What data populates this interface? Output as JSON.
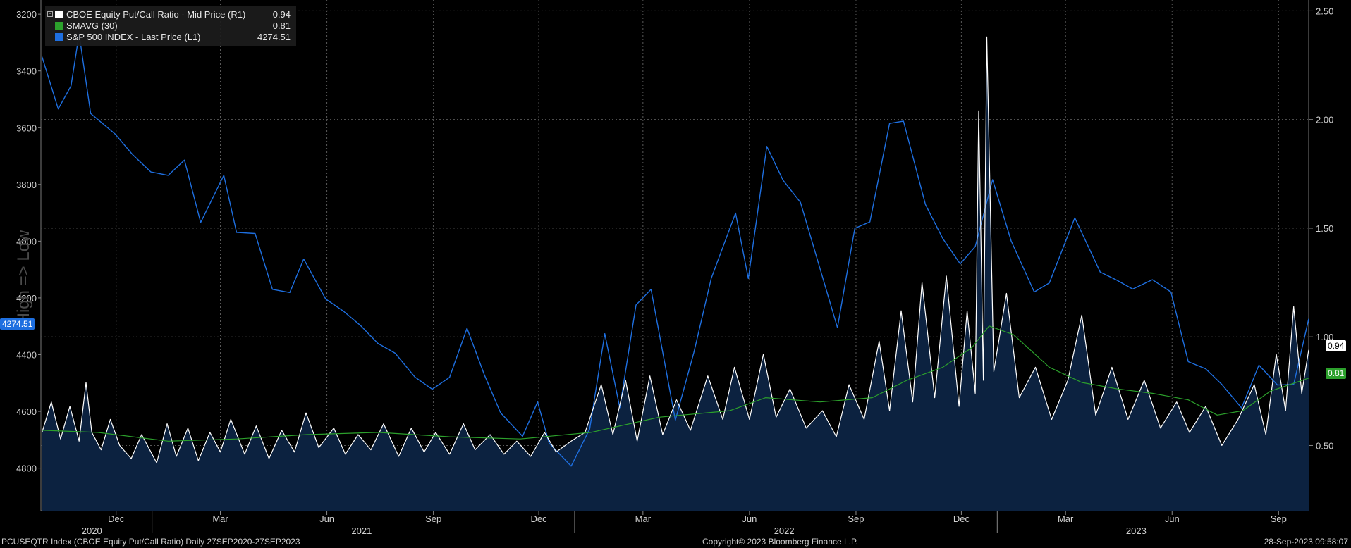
{
  "chart_data": {
    "type": "line",
    "legend": {
      "placement": "top-left",
      "items": [
        {
          "label": "CBOE Equity Put/Call Ratio - Mid Price (R1)",
          "value": "0.94",
          "color": "#ffffff"
        },
        {
          "label": "SMAVG (30)",
          "value": "0.81",
          "color": "#2ca02c"
        },
        {
          "label": "S&P 500 INDEX - Last Price (L1)",
          "value": "4274.51",
          "color": "#1e6fe0"
        }
      ]
    },
    "left_axis": {
      "inverted": true,
      "range": [
        3150,
        4950
      ],
      "ticks": [
        "3200",
        "3400",
        "3600",
        "3800",
        "4000",
        "4200",
        "4400",
        "4600",
        "4800"
      ],
      "last_tag": "4274.51"
    },
    "right_axis": {
      "range": [
        0.2,
        2.55
      ],
      "ticks": [
        "0.50",
        "1.00",
        "1.50",
        "2.00",
        "2.50"
      ],
      "tags": [
        {
          "text": "0.94",
          "color": "#ffffff"
        },
        {
          "text": "0.81",
          "color": "#2ca02c"
        }
      ]
    },
    "x_axis": {
      "range": [
        "2020-09-27",
        "2023-09-27"
      ],
      "month_ticks": [
        {
          "label": "Dec",
          "date": "2020-12-01"
        },
        {
          "label": "Mar",
          "date": "2021-03-01"
        },
        {
          "label": "Jun",
          "date": "2021-06-01"
        },
        {
          "label": "Sep",
          "date": "2021-09-01"
        },
        {
          "label": "Dec",
          "date": "2021-12-01"
        },
        {
          "label": "Mar",
          "date": "2022-03-01"
        },
        {
          "label": "Jun",
          "date": "2022-06-01"
        },
        {
          "label": "Sep",
          "date": "2022-09-01"
        },
        {
          "label": "Dec",
          "date": "2022-12-01"
        },
        {
          "label": "Mar",
          "date": "2023-03-01"
        },
        {
          "label": "Jun",
          "date": "2023-06-01"
        },
        {
          "label": "Sep",
          "date": "2023-09-01"
        }
      ],
      "year_labels": [
        {
          "label": "2020",
          "date": "2020-11-10"
        },
        {
          "label": "2021",
          "date": "2021-07-01"
        },
        {
          "label": "2022",
          "date": "2022-07-01"
        },
        {
          "label": "2023",
          "date": "2023-05-01"
        }
      ],
      "year_boundaries": [
        "2021-01-01",
        "2022-01-01",
        "2023-01-01"
      ]
    },
    "grid": true,
    "series": [
      {
        "name": "S&P 500 INDEX - Last Price (L1)",
        "axis": "left",
        "color": "#1e6fe0",
        "points": [
          [
            "2020-09-28",
            3350
          ],
          [
            "2020-10-12",
            3534
          ],
          [
            "2020-10-23",
            3453
          ],
          [
            "2020-10-30",
            3270
          ],
          [
            "2020-11-09",
            3550
          ],
          [
            "2020-11-30",
            3622
          ],
          [
            "2020-12-15",
            3694
          ],
          [
            "2020-12-31",
            3756
          ],
          [
            "2021-01-15",
            3768
          ],
          [
            "2021-01-29",
            3714
          ],
          [
            "2021-02-12",
            3934
          ],
          [
            "2021-03-04",
            3768
          ],
          [
            "2021-03-15",
            3969
          ],
          [
            "2021-03-31",
            3973
          ],
          [
            "2021-04-15",
            4170
          ],
          [
            "2021-04-30",
            4181
          ],
          [
            "2021-05-12",
            4063
          ],
          [
            "2021-05-31",
            4204
          ],
          [
            "2021-06-15",
            4246
          ],
          [
            "2021-06-30",
            4297
          ],
          [
            "2021-07-15",
            4360
          ],
          [
            "2021-07-30",
            4395
          ],
          [
            "2021-08-16",
            4479
          ],
          [
            "2021-08-31",
            4522
          ],
          [
            "2021-09-15",
            4480
          ],
          [
            "2021-09-30",
            4307
          ],
          [
            "2021-10-15",
            4471
          ],
          [
            "2021-10-29",
            4605
          ],
          [
            "2021-11-17",
            4688
          ],
          [
            "2021-11-30",
            4567
          ],
          [
            "2021-12-10",
            4712
          ],
          [
            "2021-12-29",
            4793
          ],
          [
            "2022-01-14",
            4662
          ],
          [
            "2022-01-27",
            4326
          ],
          [
            "2022-02-09",
            4587
          ],
          [
            "2022-02-23",
            4225
          ],
          [
            "2022-03-08",
            4170
          ],
          [
            "2022-03-29",
            4631
          ],
          [
            "2022-04-14",
            4392
          ],
          [
            "2022-04-29",
            4131
          ],
          [
            "2022-05-20",
            3901
          ],
          [
            "2022-05-31",
            4132
          ],
          [
            "2022-06-16",
            3666
          ],
          [
            "2022-06-30",
            3785
          ],
          [
            "2022-07-15",
            3863
          ],
          [
            "2022-08-16",
            4305
          ],
          [
            "2022-08-31",
            3955
          ],
          [
            "2022-09-13",
            3932
          ],
          [
            "2022-09-30",
            3585
          ],
          [
            "2022-10-12",
            3577
          ],
          [
            "2022-10-31",
            3871
          ],
          [
            "2022-11-15",
            3991
          ],
          [
            "2022-11-30",
            4080
          ],
          [
            "2022-12-13",
            4019
          ],
          [
            "2022-12-28",
            3783
          ],
          [
            "2023-01-13",
            3999
          ],
          [
            "2023-02-02",
            4179
          ],
          [
            "2023-02-15",
            4147
          ],
          [
            "2023-03-09",
            3918
          ],
          [
            "2023-03-31",
            4109
          ],
          [
            "2023-04-14",
            4137
          ],
          [
            "2023-04-28",
            4169
          ],
          [
            "2023-05-15",
            4136
          ],
          [
            "2023-05-31",
            4179
          ],
          [
            "2023-06-15",
            4425
          ],
          [
            "2023-06-30",
            4450
          ],
          [
            "2023-07-14",
            4505
          ],
          [
            "2023-07-31",
            4588
          ],
          [
            "2023-08-15",
            4437
          ],
          [
            "2023-08-31",
            4507
          ],
          [
            "2023-09-14",
            4505
          ],
          [
            "2023-09-27",
            4274
          ]
        ]
      },
      {
        "name": "CBOE Equity Put/Call Ratio - Mid Price (R1)",
        "axis": "right",
        "color": "#ffffff",
        "fill": "#0c2240",
        "points": [
          [
            "2020-09-28",
            0.56
          ],
          [
            "2020-10-06",
            0.7
          ],
          [
            "2020-10-14",
            0.53
          ],
          [
            "2020-10-22",
            0.68
          ],
          [
            "2020-10-30",
            0.52
          ],
          [
            "2020-11-05",
            0.79
          ],
          [
            "2020-11-10",
            0.56
          ],
          [
            "2020-11-18",
            0.48
          ],
          [
            "2020-11-26",
            0.62
          ],
          [
            "2020-12-04",
            0.5
          ],
          [
            "2020-12-14",
            0.44
          ],
          [
            "2020-12-23",
            0.55
          ],
          [
            "2021-01-05",
            0.42
          ],
          [
            "2021-01-14",
            0.6
          ],
          [
            "2021-01-22",
            0.45
          ],
          [
            "2021-02-01",
            0.58
          ],
          [
            "2021-02-10",
            0.43
          ],
          [
            "2021-02-20",
            0.56
          ],
          [
            "2021-03-01",
            0.47
          ],
          [
            "2021-03-10",
            0.62
          ],
          [
            "2021-03-22",
            0.46
          ],
          [
            "2021-04-01",
            0.59
          ],
          [
            "2021-04-12",
            0.44
          ],
          [
            "2021-04-23",
            0.57
          ],
          [
            "2021-05-04",
            0.47
          ],
          [
            "2021-05-14",
            0.65
          ],
          [
            "2021-05-25",
            0.49
          ],
          [
            "2021-06-07",
            0.58
          ],
          [
            "2021-06-17",
            0.46
          ],
          [
            "2021-06-28",
            0.55
          ],
          [
            "2021-07-09",
            0.48
          ],
          [
            "2021-07-20",
            0.6
          ],
          [
            "2021-08-02",
            0.45
          ],
          [
            "2021-08-13",
            0.58
          ],
          [
            "2021-08-24",
            0.47
          ],
          [
            "2021-09-03",
            0.56
          ],
          [
            "2021-09-15",
            0.46
          ],
          [
            "2021-09-27",
            0.6
          ],
          [
            "2021-10-07",
            0.48
          ],
          [
            "2021-10-20",
            0.55
          ],
          [
            "2021-11-01",
            0.46
          ],
          [
            "2021-11-12",
            0.52
          ],
          [
            "2021-11-24",
            0.45
          ],
          [
            "2021-12-06",
            0.56
          ],
          [
            "2021-12-16",
            0.47
          ],
          [
            "2021-12-29",
            0.52
          ],
          [
            "2022-01-10",
            0.56
          ],
          [
            "2022-01-24",
            0.78
          ],
          [
            "2022-02-03",
            0.55
          ],
          [
            "2022-02-14",
            0.8
          ],
          [
            "2022-02-24",
            0.52
          ],
          [
            "2022-03-07",
            0.82
          ],
          [
            "2022-03-18",
            0.55
          ],
          [
            "2022-03-30",
            0.71
          ],
          [
            "2022-04-11",
            0.57
          ],
          [
            "2022-04-26",
            0.82
          ],
          [
            "2022-05-09",
            0.62
          ],
          [
            "2022-05-19",
            0.86
          ],
          [
            "2022-06-01",
            0.62
          ],
          [
            "2022-06-13",
            0.92
          ],
          [
            "2022-06-24",
            0.63
          ],
          [
            "2022-07-06",
            0.76
          ],
          [
            "2022-07-20",
            0.58
          ],
          [
            "2022-08-03",
            0.66
          ],
          [
            "2022-08-15",
            0.54
          ],
          [
            "2022-08-26",
            0.78
          ],
          [
            "2022-09-08",
            0.62
          ],
          [
            "2022-09-21",
            0.98
          ],
          [
            "2022-09-30",
            0.66
          ],
          [
            "2022-10-10",
            1.12
          ],
          [
            "2022-10-20",
            0.7
          ],
          [
            "2022-10-28",
            1.25
          ],
          [
            "2022-11-08",
            0.72
          ],
          [
            "2022-11-18",
            1.28
          ],
          [
            "2022-11-29",
            0.68
          ],
          [
            "2022-12-06",
            1.12
          ],
          [
            "2022-12-13",
            0.74
          ],
          [
            "2022-12-16",
            2.04
          ],
          [
            "2022-12-20",
            0.8
          ],
          [
            "2022-12-23",
            2.38
          ],
          [
            "2022-12-29",
            0.84
          ],
          [
            "2023-01-09",
            1.2
          ],
          [
            "2023-01-20",
            0.72
          ],
          [
            "2023-02-03",
            0.86
          ],
          [
            "2023-02-17",
            0.62
          ],
          [
            "2023-03-03",
            0.8
          ],
          [
            "2023-03-15",
            1.1
          ],
          [
            "2023-03-27",
            0.64
          ],
          [
            "2023-04-10",
            0.86
          ],
          [
            "2023-04-24",
            0.62
          ],
          [
            "2023-05-08",
            0.8
          ],
          [
            "2023-05-22",
            0.58
          ],
          [
            "2023-06-05",
            0.7
          ],
          [
            "2023-06-16",
            0.56
          ],
          [
            "2023-06-30",
            0.68
          ],
          [
            "2023-07-14",
            0.5
          ],
          [
            "2023-07-28",
            0.62
          ],
          [
            "2023-08-11",
            0.78
          ],
          [
            "2023-08-21",
            0.55
          ],
          [
            "2023-08-30",
            0.92
          ],
          [
            "2023-09-07",
            0.66
          ],
          [
            "2023-09-14",
            1.14
          ],
          [
            "2023-09-21",
            0.74
          ],
          [
            "2023-09-27",
            0.94
          ]
        ]
      },
      {
        "name": "SMAVG (30)",
        "axis": "right",
        "color": "#2ca02c",
        "points": [
          [
            "2020-09-28",
            0.57
          ],
          [
            "2020-11-15",
            0.56
          ],
          [
            "2021-01-15",
            0.52
          ],
          [
            "2021-03-15",
            0.53
          ],
          [
            "2021-05-15",
            0.55
          ],
          [
            "2021-07-15",
            0.56
          ],
          [
            "2021-09-15",
            0.54
          ],
          [
            "2021-11-15",
            0.53
          ],
          [
            "2022-01-15",
            0.56
          ],
          [
            "2022-03-15",
            0.63
          ],
          [
            "2022-05-15",
            0.66
          ],
          [
            "2022-06-15",
            0.72
          ],
          [
            "2022-08-01",
            0.7
          ],
          [
            "2022-09-15",
            0.72
          ],
          [
            "2022-10-15",
            0.8
          ],
          [
            "2022-11-15",
            0.86
          ],
          [
            "2022-12-10",
            0.95
          ],
          [
            "2022-12-25",
            1.05
          ],
          [
            "2023-01-15",
            1.01
          ],
          [
            "2023-02-15",
            0.86
          ],
          [
            "2023-03-15",
            0.79
          ],
          [
            "2023-04-15",
            0.76
          ],
          [
            "2023-05-15",
            0.74
          ],
          [
            "2023-06-15",
            0.71
          ],
          [
            "2023-07-10",
            0.64
          ],
          [
            "2023-08-01",
            0.66
          ],
          [
            "2023-08-25",
            0.75
          ],
          [
            "2023-09-27",
            0.81
          ]
        ]
      }
    ]
  },
  "side_label": "High => Low",
  "footer": {
    "left": "PCUSEQTR Index (CBOE Equity Put/Call Ratio)  Daily 27SEP2020-27SEP2023",
    "center": "Copyright© 2023 Bloomberg Finance L.P.",
    "right": "28-Sep-2023 09:58:07"
  }
}
